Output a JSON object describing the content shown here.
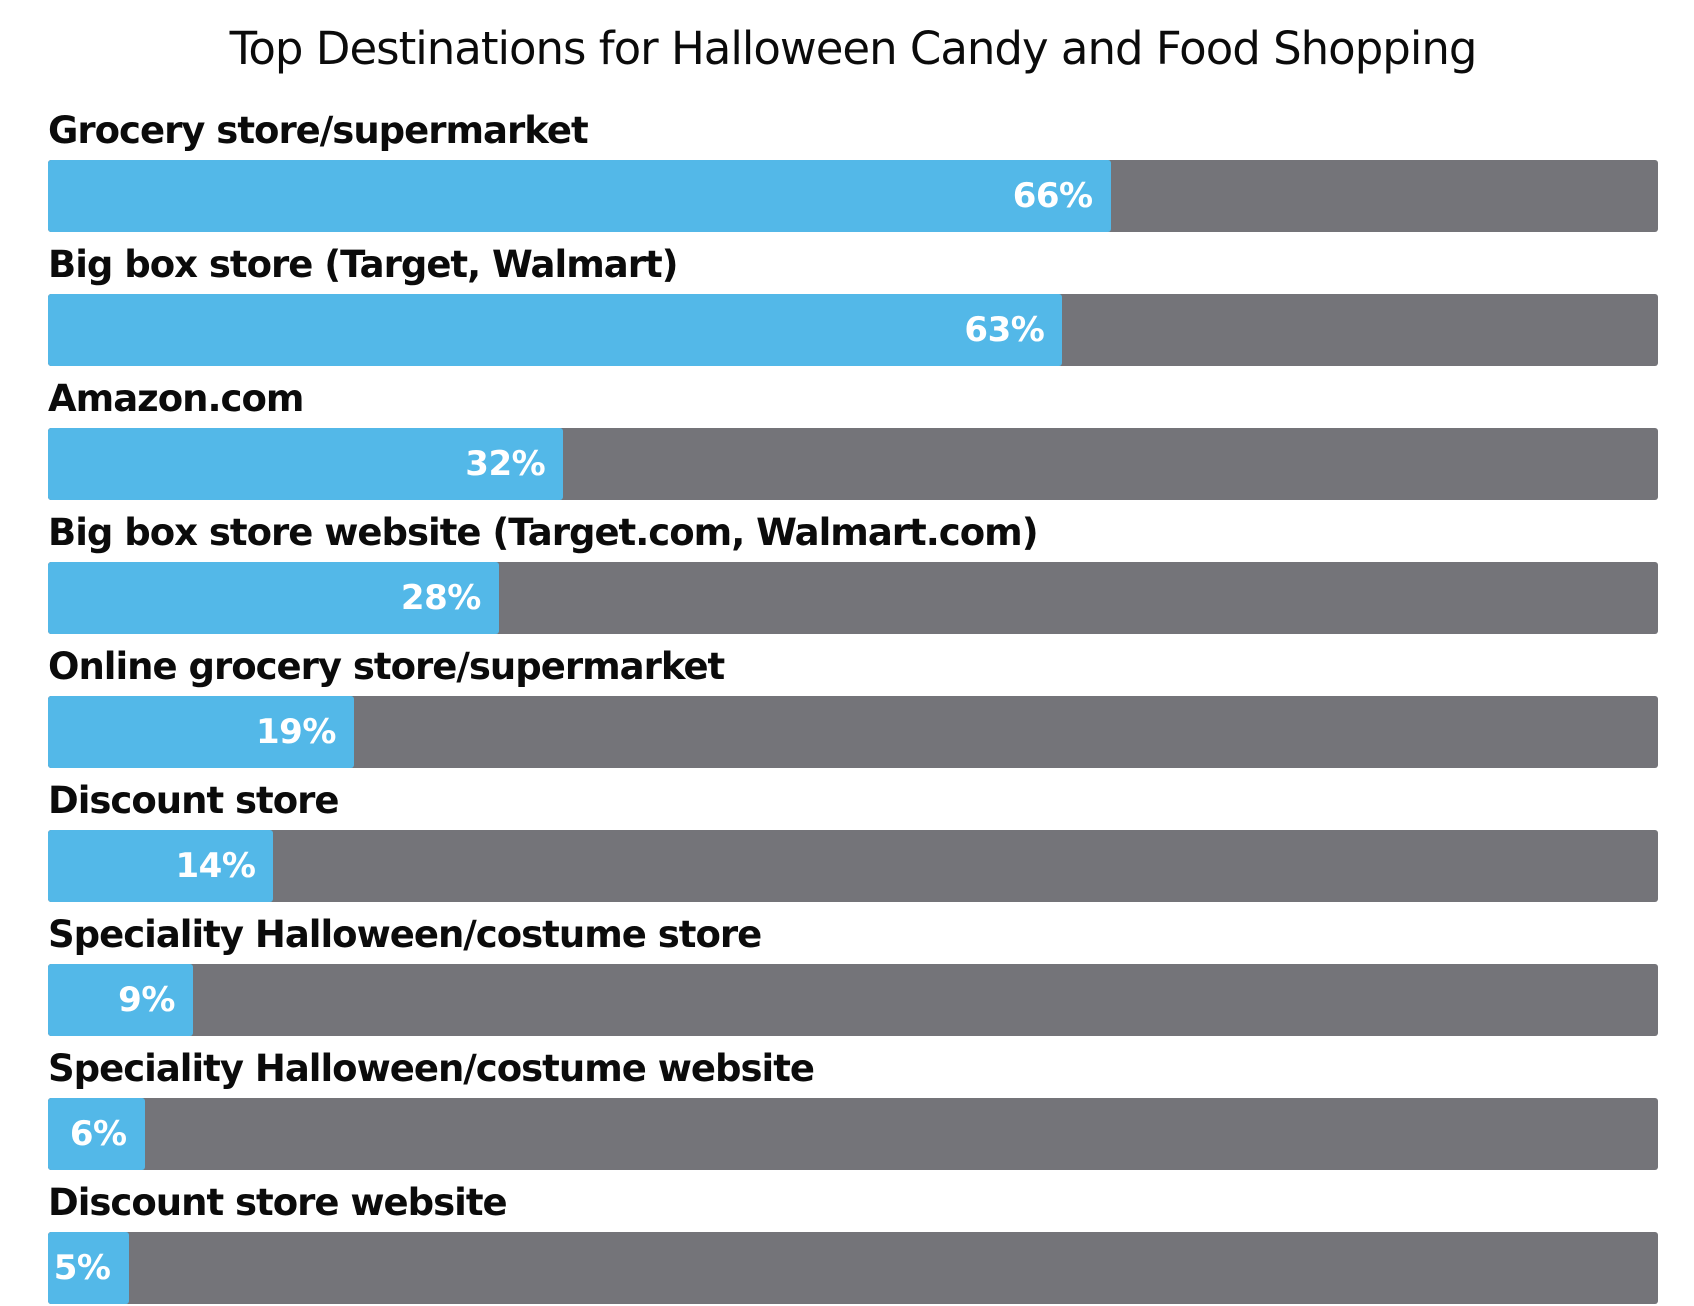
{
  "chart_data": {
    "type": "bar",
    "orientation": "horizontal",
    "title": "Top Destinations for Halloween Candy and Food Shopping",
    "categories": [
      "Grocery store/supermarket",
      "Big box store (Target, Walmart)",
      "Amazon.com",
      "Big box store website (Target.com, Walmart.com)",
      "Online grocery store/supermarket",
      "Discount store",
      "Speciality Halloween/costume store",
      "Speciality Halloween/costume website",
      "Discount store website"
    ],
    "values": [
      66,
      63,
      32,
      28,
      19,
      14,
      9,
      6,
      5
    ],
    "value_labels": [
      "66%",
      "63%",
      "32%",
      "28%",
      "19%",
      "14%",
      "9%",
      "6%",
      "5%"
    ],
    "value_suffix": "%",
    "xlim": [
      0,
      100
    ],
    "grid": false,
    "legend": false,
    "value_label_position": "inside-end",
    "label_position": "above-bar",
    "colors": {
      "bar_fill": "#53b8e8",
      "bar_track": "#747479",
      "value_text": "#ffffff",
      "label_text": "#0b0b0b",
      "title_text": "#0b0b0b",
      "background": "#ffffff"
    }
  }
}
